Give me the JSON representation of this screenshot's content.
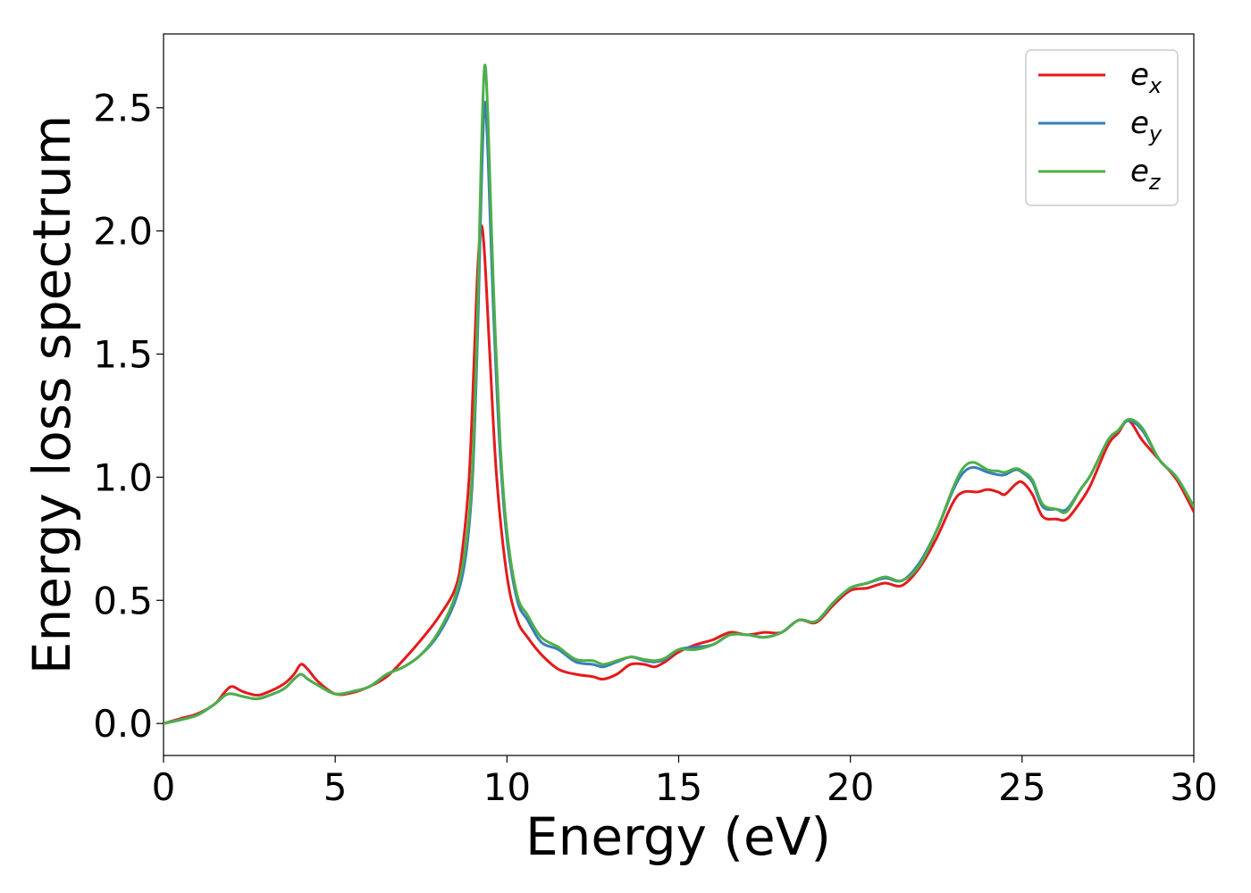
{
  "chart_data": {
    "type": "line",
    "title": "",
    "xlabel": "Energy (eV)",
    "ylabel": "Energy loss spectrum",
    "xlim": [
      0,
      30
    ],
    "ylim": [
      -0.13,
      2.8
    ],
    "xticks": [
      0,
      5,
      10,
      15,
      20,
      25,
      30
    ],
    "xtick_labels": [
      "0",
      "5",
      "10",
      "15",
      "20",
      "25",
      "30"
    ],
    "yticks": [
      0.0,
      0.5,
      1.0,
      1.5,
      2.0,
      2.5
    ],
    "ytick_labels": [
      "0.0",
      "0.5",
      "1.0",
      "1.5",
      "2.0",
      "2.5"
    ],
    "grid": false,
    "legend_position": "top-right",
    "series": [
      {
        "name": "e_x",
        "base": "e",
        "subscript": "x",
        "color": "#e41a1c",
        "points": [
          [
            0,
            0
          ],
          [
            0.5,
            0.02
          ],
          [
            1,
            0.04
          ],
          [
            1.5,
            0.08
          ],
          [
            1.8,
            0.13
          ],
          [
            2,
            0.15
          ],
          [
            2.3,
            0.13
          ],
          [
            2.7,
            0.115
          ],
          [
            3,
            0.125
          ],
          [
            3.5,
            0.16
          ],
          [
            3.8,
            0.2
          ],
          [
            4,
            0.24
          ],
          [
            4.2,
            0.22
          ],
          [
            4.5,
            0.17
          ],
          [
            5,
            0.12
          ],
          [
            5.5,
            0.125
          ],
          [
            6,
            0.15
          ],
          [
            6.5,
            0.19
          ],
          [
            7,
            0.26
          ],
          [
            7.5,
            0.34
          ],
          [
            8,
            0.43
          ],
          [
            8.5,
            0.55
          ],
          [
            8.7,
            0.7
          ],
          [
            8.9,
            1.0
          ],
          [
            9.05,
            1.5
          ],
          [
            9.15,
            1.85
          ],
          [
            9.25,
            2.02
          ],
          [
            9.35,
            1.9
          ],
          [
            9.5,
            1.5
          ],
          [
            9.7,
            1.0
          ],
          [
            10,
            0.6
          ],
          [
            10.3,
            0.42
          ],
          [
            10.6,
            0.35
          ],
          [
            11,
            0.28
          ],
          [
            11.5,
            0.22
          ],
          [
            12,
            0.2
          ],
          [
            12.5,
            0.19
          ],
          [
            12.8,
            0.18
          ],
          [
            13.2,
            0.2
          ],
          [
            13.6,
            0.24
          ],
          [
            14,
            0.24
          ],
          [
            14.3,
            0.23
          ],
          [
            14.6,
            0.25
          ],
          [
            15,
            0.29
          ],
          [
            15.5,
            0.32
          ],
          [
            16,
            0.34
          ],
          [
            16.5,
            0.37
          ],
          [
            17,
            0.36
          ],
          [
            17.5,
            0.37
          ],
          [
            18,
            0.37
          ],
          [
            18.5,
            0.42
          ],
          [
            19,
            0.41
          ],
          [
            19.5,
            0.48
          ],
          [
            20,
            0.54
          ],
          [
            20.5,
            0.55
          ],
          [
            21,
            0.57
          ],
          [
            21.5,
            0.56
          ],
          [
            22,
            0.63
          ],
          [
            22.5,
            0.75
          ],
          [
            23,
            0.9
          ],
          [
            23.3,
            0.94
          ],
          [
            23.7,
            0.94
          ],
          [
            24,
            0.95
          ],
          [
            24.3,
            0.94
          ],
          [
            24.5,
            0.93
          ],
          [
            24.8,
            0.97
          ],
          [
            25,
            0.98
          ],
          [
            25.3,
            0.93
          ],
          [
            25.6,
            0.84
          ],
          [
            26,
            0.83
          ],
          [
            26.3,
            0.83
          ],
          [
            26.7,
            0.9
          ],
          [
            27,
            0.97
          ],
          [
            27.5,
            1.13
          ],
          [
            27.8,
            1.18
          ],
          [
            28.1,
            1.23
          ],
          [
            28.5,
            1.15
          ],
          [
            29,
            1.07
          ],
          [
            29.5,
            0.99
          ],
          [
            30,
            0.86
          ]
        ]
      },
      {
        "name": "e_y",
        "base": "e",
        "subscript": "y",
        "color": "#377eb8",
        "points": [
          [
            0,
            0
          ],
          [
            0.5,
            0.015
          ],
          [
            1,
            0.035
          ],
          [
            1.5,
            0.08
          ],
          [
            1.8,
            0.115
          ],
          [
            2,
            0.12
          ],
          [
            2.3,
            0.11
          ],
          [
            2.7,
            0.1
          ],
          [
            3,
            0.11
          ],
          [
            3.5,
            0.14
          ],
          [
            3.8,
            0.18
          ],
          [
            4,
            0.2
          ],
          [
            4.2,
            0.18
          ],
          [
            4.5,
            0.155
          ],
          [
            5,
            0.12
          ],
          [
            5.5,
            0.13
          ],
          [
            6,
            0.15
          ],
          [
            6.5,
            0.2
          ],
          [
            7,
            0.23
          ],
          [
            7.5,
            0.28
          ],
          [
            8,
            0.36
          ],
          [
            8.5,
            0.5
          ],
          [
            8.8,
            0.68
          ],
          [
            9,
            1.0
          ],
          [
            9.15,
            1.6
          ],
          [
            9.25,
            2.15
          ],
          [
            9.35,
            2.52
          ],
          [
            9.45,
            2.3
          ],
          [
            9.6,
            1.7
          ],
          [
            9.8,
            1.1
          ],
          [
            10,
            0.75
          ],
          [
            10.3,
            0.5
          ],
          [
            10.6,
            0.42
          ],
          [
            11,
            0.33
          ],
          [
            11.5,
            0.3
          ],
          [
            12,
            0.25
          ],
          [
            12.5,
            0.24
          ],
          [
            12.8,
            0.23
          ],
          [
            13.2,
            0.25
          ],
          [
            13.6,
            0.27
          ],
          [
            14,
            0.255
          ],
          [
            14.3,
            0.25
          ],
          [
            14.6,
            0.26
          ],
          [
            15,
            0.3
          ],
          [
            15.5,
            0.31
          ],
          [
            16,
            0.32
          ],
          [
            16.5,
            0.36
          ],
          [
            17,
            0.36
          ],
          [
            17.5,
            0.35
          ],
          [
            18,
            0.37
          ],
          [
            18.5,
            0.42
          ],
          [
            19,
            0.415
          ],
          [
            19.5,
            0.49
          ],
          [
            20,
            0.55
          ],
          [
            20.5,
            0.57
          ],
          [
            21,
            0.59
          ],
          [
            21.5,
            0.58
          ],
          [
            22,
            0.65
          ],
          [
            22.5,
            0.78
          ],
          [
            23,
            0.95
          ],
          [
            23.3,
            1.02
          ],
          [
            23.6,
            1.04
          ],
          [
            24,
            1.02
          ],
          [
            24.3,
            1.01
          ],
          [
            24.5,
            1.01
          ],
          [
            24.8,
            1.03
          ],
          [
            25,
            1.02
          ],
          [
            25.3,
            0.98
          ],
          [
            25.6,
            0.88
          ],
          [
            26,
            0.87
          ],
          [
            26.3,
            0.87
          ],
          [
            26.7,
            0.95
          ],
          [
            27,
            1.01
          ],
          [
            27.5,
            1.15
          ],
          [
            27.8,
            1.19
          ],
          [
            28.1,
            1.23
          ],
          [
            28.5,
            1.19
          ],
          [
            29,
            1.07
          ],
          [
            29.5,
            1.0
          ],
          [
            30,
            0.88
          ]
        ]
      },
      {
        "name": "e_z",
        "base": "e",
        "subscript": "z",
        "color": "#4daf4a",
        "points": [
          [
            0,
            0
          ],
          [
            0.5,
            0.015
          ],
          [
            1,
            0.035
          ],
          [
            1.5,
            0.08
          ],
          [
            1.8,
            0.115
          ],
          [
            2,
            0.12
          ],
          [
            2.3,
            0.11
          ],
          [
            2.7,
            0.1
          ],
          [
            3,
            0.11
          ],
          [
            3.5,
            0.14
          ],
          [
            3.8,
            0.18
          ],
          [
            4,
            0.2
          ],
          [
            4.2,
            0.18
          ],
          [
            4.5,
            0.155
          ],
          [
            5,
            0.12
          ],
          [
            5.5,
            0.13
          ],
          [
            6,
            0.15
          ],
          [
            6.5,
            0.2
          ],
          [
            7,
            0.23
          ],
          [
            7.5,
            0.28
          ],
          [
            8,
            0.37
          ],
          [
            8.5,
            0.52
          ],
          [
            8.8,
            0.72
          ],
          [
            9,
            1.05
          ],
          [
            9.15,
            1.7
          ],
          [
            9.25,
            2.3
          ],
          [
            9.35,
            2.67
          ],
          [
            9.45,
            2.45
          ],
          [
            9.6,
            1.8
          ],
          [
            9.8,
            1.15
          ],
          [
            10,
            0.78
          ],
          [
            10.3,
            0.52
          ],
          [
            10.6,
            0.44
          ],
          [
            11,
            0.35
          ],
          [
            11.5,
            0.31
          ],
          [
            12,
            0.26
          ],
          [
            12.5,
            0.255
          ],
          [
            12.8,
            0.24
          ],
          [
            13.2,
            0.255
          ],
          [
            13.6,
            0.27
          ],
          [
            14,
            0.26
          ],
          [
            14.3,
            0.255
          ],
          [
            14.6,
            0.265
          ],
          [
            15,
            0.3
          ],
          [
            15.5,
            0.3
          ],
          [
            16,
            0.32
          ],
          [
            16.5,
            0.36
          ],
          [
            17,
            0.36
          ],
          [
            17.5,
            0.35
          ],
          [
            18,
            0.37
          ],
          [
            18.5,
            0.42
          ],
          [
            19,
            0.415
          ],
          [
            19.5,
            0.49
          ],
          [
            20,
            0.55
          ],
          [
            20.5,
            0.57
          ],
          [
            21,
            0.595
          ],
          [
            21.5,
            0.58
          ],
          [
            22,
            0.64
          ],
          [
            22.5,
            0.78
          ],
          [
            23,
            0.96
          ],
          [
            23.3,
            1.04
          ],
          [
            23.6,
            1.06
          ],
          [
            24,
            1.03
          ],
          [
            24.3,
            1.025
          ],
          [
            24.5,
            1.02
          ],
          [
            24.8,
            1.035
          ],
          [
            25,
            1.025
          ],
          [
            25.3,
            0.99
          ],
          [
            25.6,
            0.89
          ],
          [
            26,
            0.87
          ],
          [
            26.3,
            0.86
          ],
          [
            26.7,
            0.95
          ],
          [
            27,
            1.01
          ],
          [
            27.5,
            1.15
          ],
          [
            27.8,
            1.19
          ],
          [
            28.1,
            1.235
          ],
          [
            28.5,
            1.2
          ],
          [
            29,
            1.07
          ],
          [
            29.5,
            1.0
          ],
          [
            30,
            0.88
          ]
        ]
      }
    ]
  }
}
